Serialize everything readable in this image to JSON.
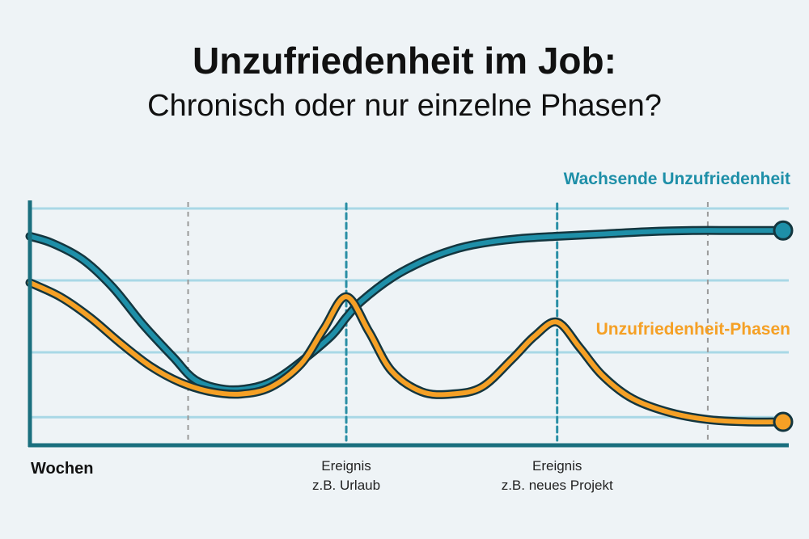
{
  "title": "Unzufriedenheit im Job:",
  "subtitle": "Chronisch oder nur einzelne Phasen?",
  "chart_data": {
    "type": "line",
    "xlabel": "Wochen",
    "ylabel": "",
    "grid": true,
    "legend": "inline-labels",
    "annotations": [
      {
        "line1": "Ereignis",
        "line2": "z.B. Urlaub",
        "x": 0.42
      },
      {
        "line1": "Ereignis",
        "line2": "z.B. neues Projekt",
        "x": 0.7
      }
    ],
    "series": [
      {
        "name": "Wachsende Unzufriedenheit",
        "color": "#1e8fa8",
        "x": [
          0,
          0.03,
          0.07,
          0.11,
          0.15,
          0.19,
          0.22,
          0.26,
          0.3,
          0.33,
          0.36,
          0.4,
          0.42,
          0.44,
          0.48,
          0.52,
          0.56,
          0.6,
          0.65,
          0.7,
          0.76,
          0.82,
          0.88,
          0.94,
          1.0
        ],
        "y": [
          0.88,
          0.85,
          0.78,
          0.66,
          0.5,
          0.36,
          0.26,
          0.22,
          0.23,
          0.27,
          0.34,
          0.45,
          0.53,
          0.6,
          0.7,
          0.77,
          0.82,
          0.85,
          0.87,
          0.88,
          0.89,
          0.9,
          0.905,
          0.905,
          0.905
        ]
      },
      {
        "name": "Unzufriedenheit-Phasen",
        "color": "#f5a025",
        "x": [
          0,
          0.04,
          0.08,
          0.12,
          0.16,
          0.2,
          0.24,
          0.28,
          0.32,
          0.36,
          0.39,
          0.42,
          0.45,
          0.48,
          0.52,
          0.56,
          0.6,
          0.64,
          0.67,
          0.7,
          0.73,
          0.76,
          0.8,
          0.85,
          0.9,
          0.95,
          1.0
        ],
        "y": [
          0.68,
          0.62,
          0.53,
          0.42,
          0.32,
          0.25,
          0.21,
          0.2,
          0.23,
          0.33,
          0.48,
          0.62,
          0.47,
          0.3,
          0.21,
          0.2,
          0.23,
          0.35,
          0.45,
          0.51,
          0.4,
          0.28,
          0.18,
          0.12,
          0.09,
          0.08,
          0.08
        ]
      }
    ]
  }
}
